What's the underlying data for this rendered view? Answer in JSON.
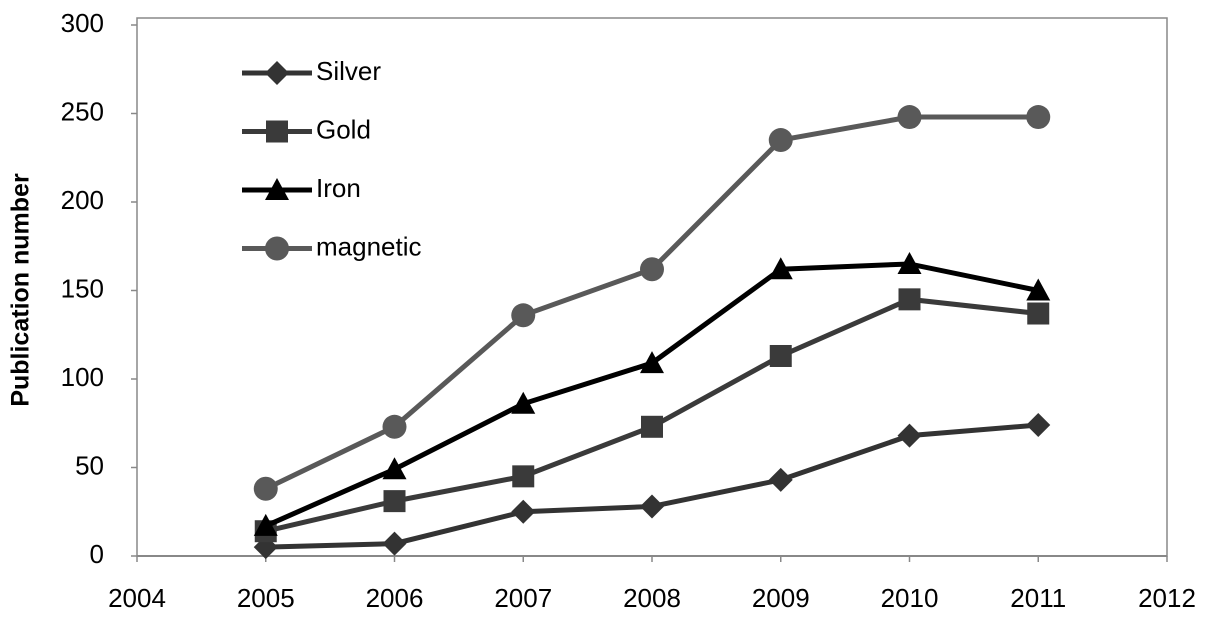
{
  "chart_data": {
    "type": "line",
    "y_label": "Publication number",
    "x": [
      2005,
      2006,
      2007,
      2008,
      2009,
      2010,
      2011
    ],
    "series": [
      {
        "name": "Silver",
        "color": "#333333",
        "marker": "diamond",
        "values": [
          5,
          7,
          25,
          28,
          43,
          68,
          74
        ]
      },
      {
        "name": "Gold",
        "color": "#3a3a3a",
        "marker": "square",
        "values": [
          14,
          31,
          45,
          73,
          113,
          145,
          137
        ]
      },
      {
        "name": "Iron",
        "color": "#000000",
        "marker": "triangle",
        "values": [
          17,
          49,
          86,
          109,
          162,
          165,
          150
        ]
      },
      {
        "name": "magnetic",
        "color": "#595959",
        "marker": "circle",
        "values": [
          38,
          73,
          136,
          162,
          235,
          248,
          248
        ]
      }
    ],
    "xlim": [
      2004,
      2012
    ],
    "xticks": [
      2004,
      2005,
      2006,
      2007,
      2008,
      2009,
      2010,
      2011,
      2012
    ],
    "ylim": [
      0,
      300
    ],
    "yticks": [
      0,
      50,
      100,
      150,
      200,
      250,
      300
    ],
    "grid": false,
    "legend": "upper left"
  }
}
